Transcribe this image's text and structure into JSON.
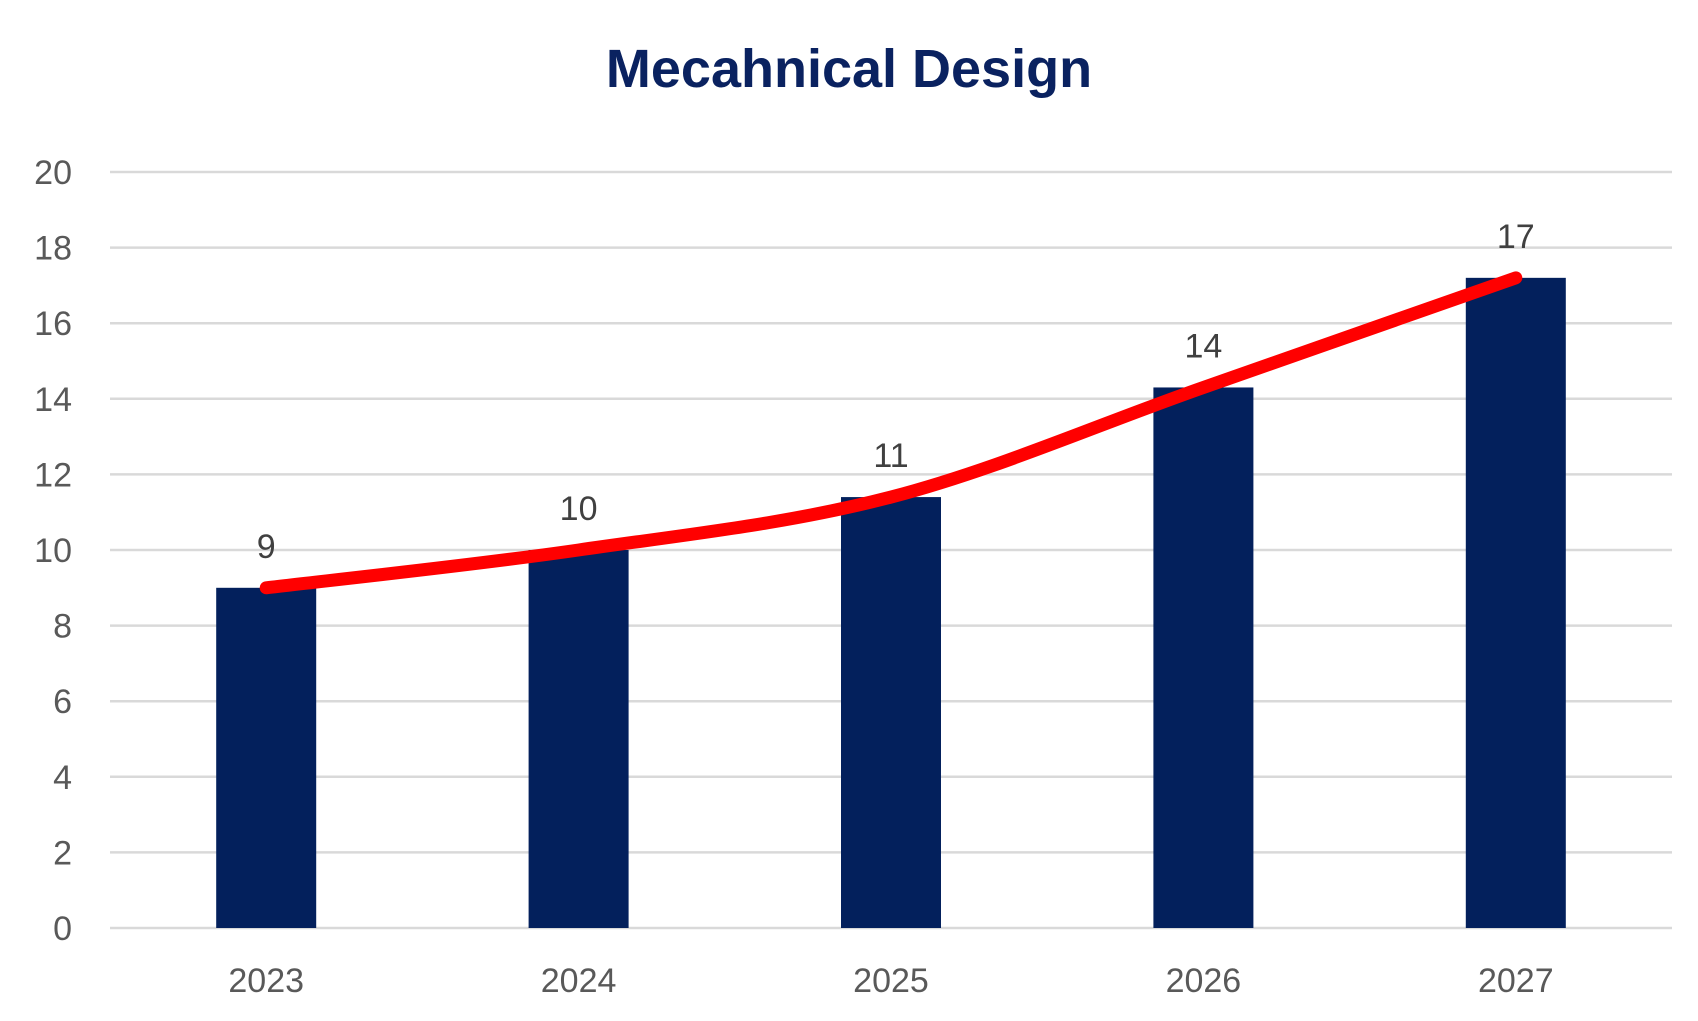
{
  "chart_data": {
    "type": "bar",
    "title": "Mecahnical Design",
    "categories": [
      "2023",
      "2024",
      "2025",
      "2026",
      "2027"
    ],
    "values": [
      9,
      10,
      11.4,
      14.3,
      17.2
    ],
    "data_labels": [
      "9",
      "10",
      "11",
      "14",
      "17"
    ],
    "ylim": [
      0,
      20
    ],
    "yticks": [
      0,
      2,
      4,
      6,
      8,
      10,
      12,
      14,
      16,
      18,
      20
    ],
    "xlabel": "",
    "ylabel": "",
    "grid": true,
    "legend": "none",
    "trend_line": {
      "type": "line",
      "values": [
        9,
        10,
        11.4,
        14.3,
        17.2
      ],
      "smooth": true
    },
    "colors": {
      "bar": "#03205c",
      "trend": "#ff0000",
      "grid": "#d9d9d9",
      "title": "#0a2260"
    }
  }
}
